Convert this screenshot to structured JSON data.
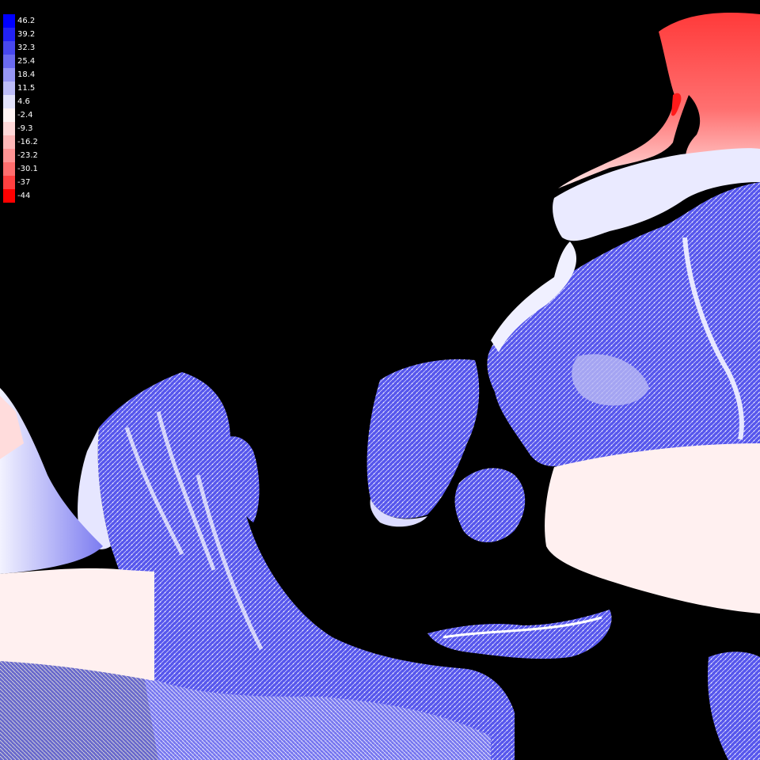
{
  "legend": {
    "entries": [
      {
        "label": "46.2",
        "color": "#0000ff"
      },
      {
        "label": "39.2",
        "color": "#2222f4"
      },
      {
        "label": "32.3",
        "color": "#4848ee"
      },
      {
        "label": "25.4",
        "color": "#6b6bf0"
      },
      {
        "label": "18.4",
        "color": "#9696f4"
      },
      {
        "label": "11.5",
        "color": "#bdbdf8"
      },
      {
        "label": "4.6",
        "color": "#e4e4fc"
      },
      {
        "label": "-2.4",
        "color": "#fff4f4"
      },
      {
        "label": "-9.3",
        "color": "#ffd8d8"
      },
      {
        "label": "-16.2",
        "color": "#ffb8b8"
      },
      {
        "label": "-23.2",
        "color": "#ff9494"
      },
      {
        "label": "-30.1",
        "color": "#ff6e6e"
      },
      {
        "label": "-37",
        "color": "#ff4040"
      },
      {
        "label": "-44",
        "color": "#ff0000"
      }
    ]
  },
  "colors": {
    "background": "#000000",
    "positive": "#5a5aee",
    "neutral": "#fff0f0",
    "negative": "#ff2020"
  }
}
